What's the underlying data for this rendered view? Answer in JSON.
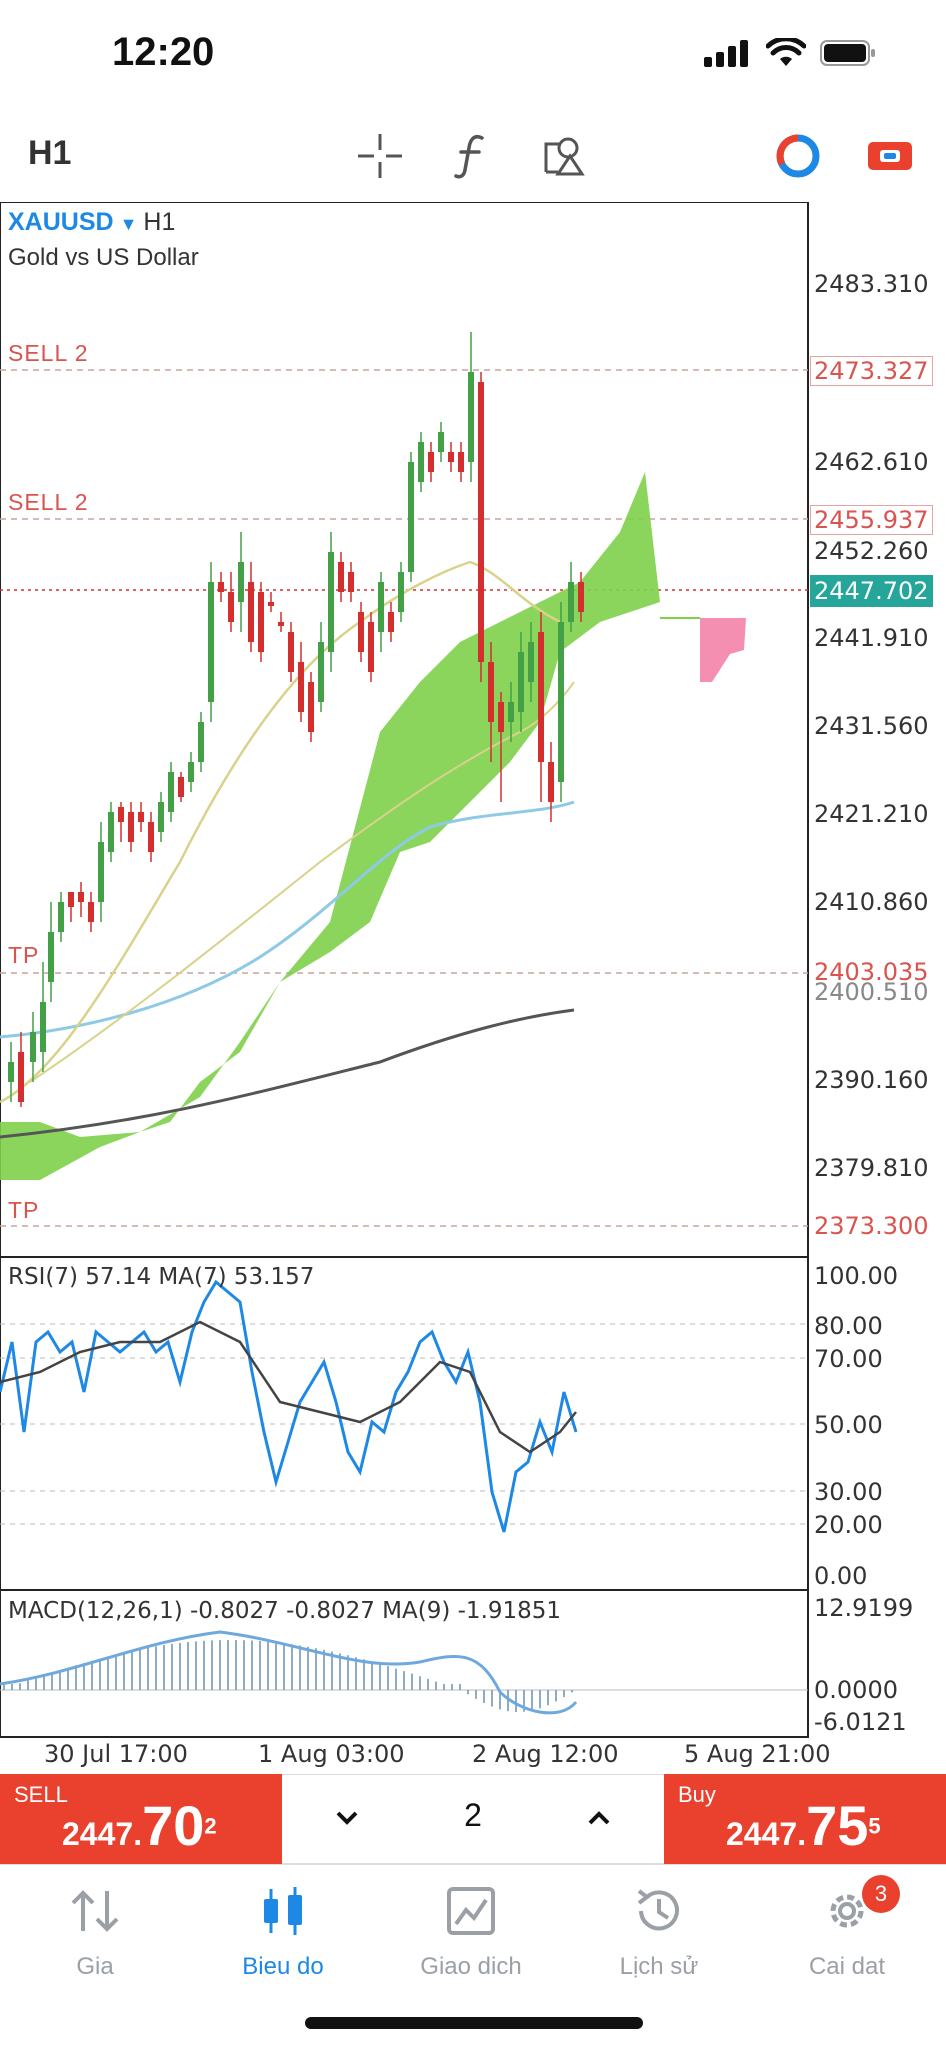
{
  "status": {
    "time": "12:20"
  },
  "toolbar": {
    "timeframe": "H1",
    "icons": [
      "crosshair-icon",
      "function-icon",
      "objects-icon",
      "indicator-toggle-icon",
      "oneclick-trading-icon"
    ]
  },
  "chart": {
    "symbol": "XAUUSD",
    "symbol_timeframe": "H1",
    "description": "Gold vs US Dollar",
    "levels": [
      {
        "label": "SELL 2",
        "price": "2473.327"
      },
      {
        "label": "SELL 2",
        "price": "2455.937"
      },
      {
        "label": "TP",
        "price": "2403.035"
      },
      {
        "label": "TP",
        "price": "2373.300"
      }
    ],
    "current_price": "2447.702",
    "price_axis": [
      "2483.310",
      "2462.610",
      "2452.260",
      "2441.910",
      "2431.560",
      "2421.210",
      "2410.860",
      "2400.510",
      "2390.160",
      "2379.810"
    ],
    "rsi": {
      "label": "RSI(7) 57.14 MA(7) 53.157",
      "axis": [
        "100.00",
        "80.00",
        "70.00",
        "50.00",
        "30.00",
        "20.00",
        "0.00"
      ]
    },
    "macd": {
      "label": "MACD(12,26,1) -0.8027 -0.8027 MA(9) -1.91851",
      "axis": [
        "12.9199",
        "0.0000",
        "-6.0121"
      ]
    },
    "time_axis": [
      "30 Jul 17:00",
      "1 Aug 03:00",
      "2 Aug 12:00",
      "5 Aug 21:00"
    ],
    "colors": {
      "bull": "#43a047",
      "bear": "#d32f2f",
      "cloud": "#7ed04b",
      "cloud_bear": "#f48fb1",
      "ma_slow": "#555555",
      "ma_mid": "#8ecae6",
      "ma_fast": "#d8d28a",
      "current": "#26a69a"
    }
  },
  "trade": {
    "sell_label": "SELL",
    "sell_price_main": "2447.",
    "sell_price_big": "70",
    "sell_price_sup": "2",
    "buy_label": "Buy",
    "buy_price_main": "2447.",
    "buy_price_big": "75",
    "buy_price_sup": "5",
    "quantity": "2"
  },
  "nav": {
    "items": [
      {
        "label": "Gia",
        "icon": "quotes-icon"
      },
      {
        "label": "Bieu do",
        "icon": "chart-icon"
      },
      {
        "label": "Giao dich",
        "icon": "trade-icon"
      },
      {
        "label": "Lịch sử",
        "icon": "history-icon"
      },
      {
        "label": "Cai dat",
        "icon": "settings-icon"
      }
    ],
    "settings_badge": "3"
  }
}
